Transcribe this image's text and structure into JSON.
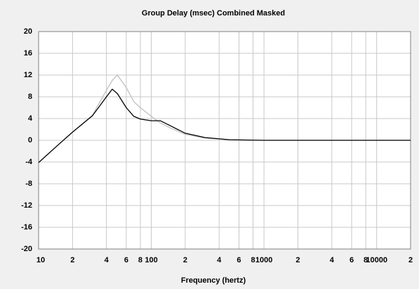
{
  "chart_data": {
    "type": "line",
    "title": "Group Delay (msec)   Combined   Masked",
    "x_label": "Frequency (hertz)",
    "x_scale": "log",
    "grid": true,
    "x": [
      10,
      15,
      20,
      30,
      40,
      45,
      50,
      60,
      70,
      80,
      100,
      120,
      150,
      200,
      300,
      500,
      1000,
      20000
    ],
    "series": [
      {
        "color": "#c0c0c0",
        "values": [
          -4.1,
          -0.8,
          1.5,
          4.6,
          9.2,
          11,
          12,
          9.7,
          7.1,
          6,
          4.4,
          3.2,
          2.2,
          1.1,
          0.4,
          0.1,
          0,
          0
        ]
      },
      {
        "color": "#000000",
        "values": [
          -4.1,
          -0.8,
          1.5,
          4.5,
          8,
          9.4,
          8.6,
          6,
          4.4,
          3.9,
          3.6,
          3.6,
          2.6,
          1.3,
          0.5,
          0.1,
          0,
          0
        ]
      }
    ],
    "xlim": [
      10,
      20000
    ],
    "xticks": [
      10,
      {
        "value": 20,
        "label": "2"
      },
      {
        "value": 40,
        "label": "4"
      },
      {
        "value": 60,
        "label": "6"
      },
      {
        "value": 80,
        "label": "8"
      },
      100,
      {
        "value": 200,
        "label": "2"
      },
      {
        "value": 400,
        "label": "4"
      },
      {
        "value": 600,
        "label": "6"
      },
      {
        "value": 800,
        "label": "8"
      },
      1000,
      {
        "value": 2000,
        "label": "2"
      },
      {
        "value": 4000,
        "label": "4"
      },
      {
        "value": 6000,
        "label": "6"
      },
      {
        "value": 8000,
        "label": "8"
      },
      10000,
      {
        "value": 20000,
        "label": "2"
      }
    ],
    "ylim": [
      -20,
      20
    ],
    "yticks": [
      -20,
      -16,
      -12,
      -8,
      -4,
      0,
      4,
      8,
      12,
      16,
      20
    ]
  }
}
